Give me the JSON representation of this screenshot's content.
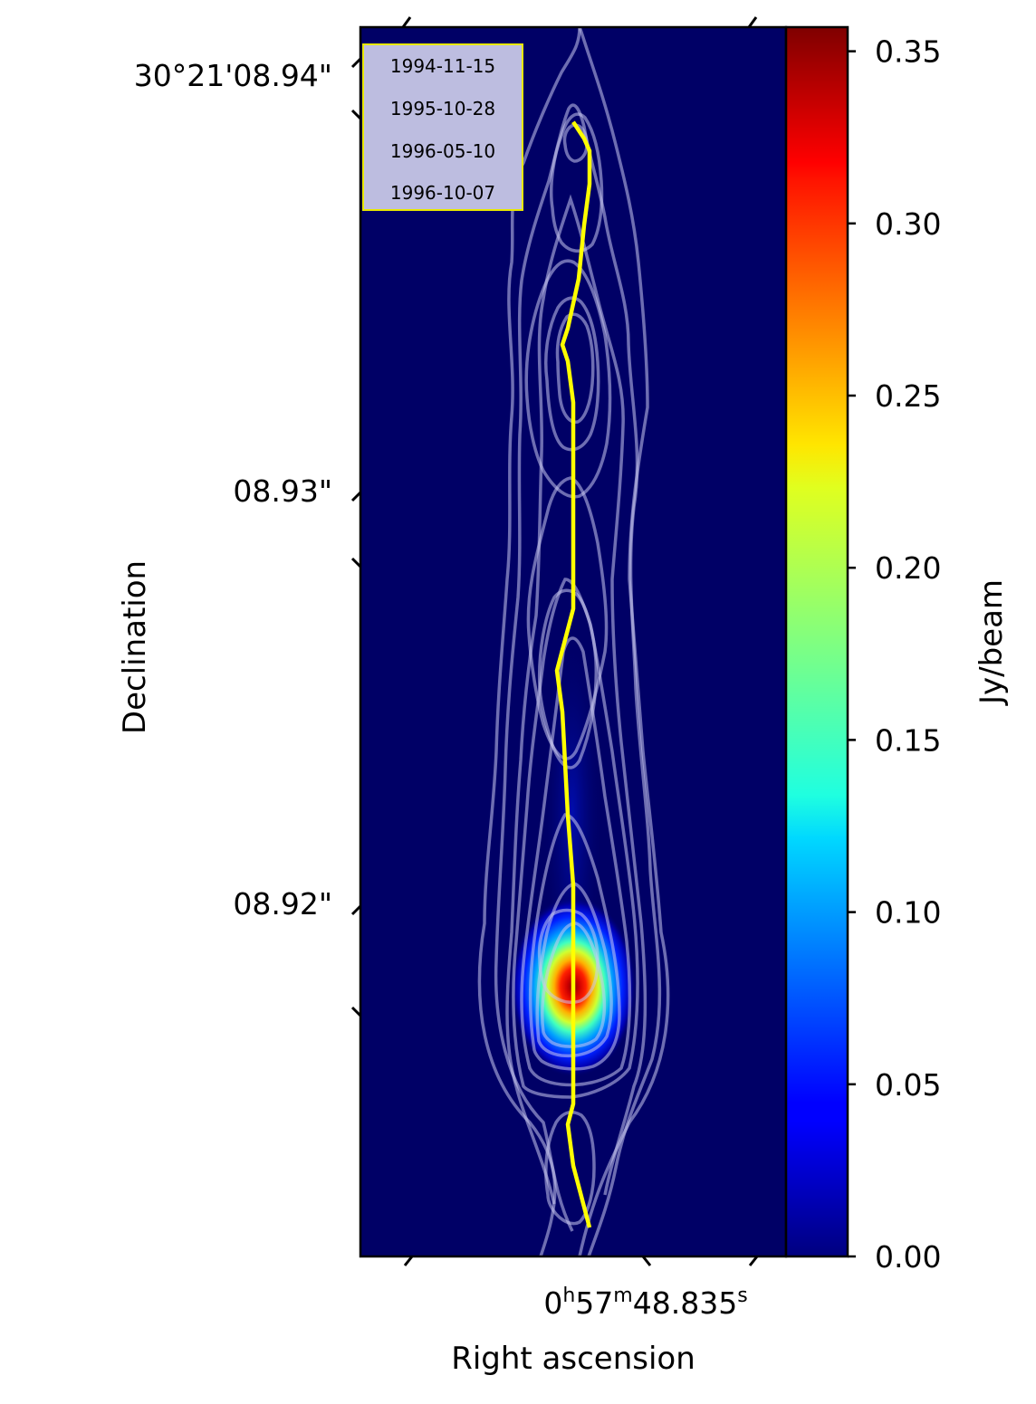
{
  "chart_data": {
    "type": "heatmap",
    "title": "",
    "xlabel": "Right ascension",
    "ylabel": "Declination",
    "colorbar": {
      "label": "Jy/beam",
      "range": [
        0.0,
        0.357
      ],
      "ticks": [
        "0.00",
        "0.05",
        "0.10",
        "0.15",
        "0.20",
        "0.25",
        "0.30",
        "0.35"
      ],
      "tick_values": [
        0.0,
        0.05,
        0.1,
        0.15,
        0.2,
        0.25,
        0.3,
        0.35
      ],
      "colormap": "jet"
    },
    "x_ticks": {
      "labels": [
        {
          "h": "0",
          "hs": "h",
          "m": "57",
          "ms": "m",
          "s": "48.835",
          "ss": "s"
        }
      ]
    },
    "y_ticks": {
      "labels": [
        "30°21'08.94\"",
        "08.93\"",
        "08.92\""
      ],
      "values_arcsec": [
        8.94,
        8.93,
        8.92
      ]
    },
    "y_range_arcsec": [
      8.9133,
      8.9431
    ],
    "legend": {
      "placement": "top-left",
      "entries": [
        "1994-11-15",
        "1995-10-28",
        "1996-05-10",
        "1996-10-07"
      ]
    },
    "peak": {
      "value": 0.357,
      "dec_arcsec": 8.9177
    },
    "ridge_line": {
      "color": "#ffff00",
      "dec_arcsec": [
        8.9408,
        8.9406,
        8.9404,
        8.9401,
        8.9393,
        8.9383,
        8.937,
        8.9358,
        8.9354,
        8.935,
        8.934,
        8.932,
        8.929,
        8.9285,
        8.928,
        8.9275,
        8.9265,
        8.924,
        8.9223,
        8.9216,
        8.92,
        8.918,
        8.917,
        8.9165,
        8.9155,
        8.915,
        8.9145,
        8.914
      ],
      "offset_mas": [
        0.0,
        0.2,
        0.4,
        0.6,
        0.6,
        0.4,
        0.2,
        -0.2,
        -0.4,
        -0.2,
        0.0,
        0.0,
        0.0,
        -0.2,
        -0.4,
        -0.6,
        -0.4,
        -0.2,
        0.0,
        0.0,
        0.0,
        0.0,
        0.0,
        -0.2,
        0.0,
        0.2,
        0.4,
        0.6
      ]
    },
    "colors": {
      "background": "#000066",
      "contour": "#c8c8f0"
    }
  }
}
